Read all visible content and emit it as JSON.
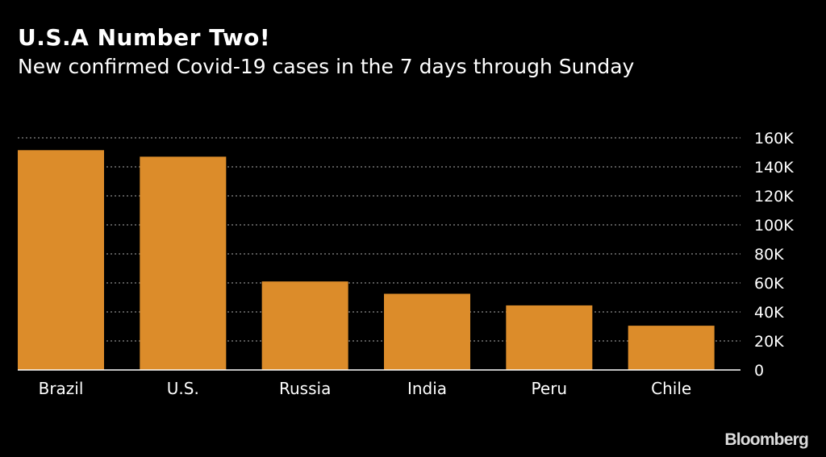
{
  "header": {
    "title": "U.S.A Number Two!",
    "subtitle": "New confirmed Covid-19 cases in the 7 days through Sunday"
  },
  "footer": {
    "brand": "Bloomberg"
  },
  "colors": {
    "background": "#000000",
    "bar": "#dc8c2a",
    "grid": "#8a8a8a",
    "text": "#ffffff",
    "axis": "#ffffff"
  },
  "chart_data": {
    "type": "bar",
    "title": "U.S.A Number Two!",
    "subtitle": "New confirmed Covid-19 cases in the 7 days through Sunday",
    "categories": [
      "Brazil",
      "U.S.",
      "Russia",
      "India",
      "Peru",
      "Chile"
    ],
    "values": [
      151500,
      147000,
      61000,
      52500,
      44500,
      30500
    ],
    "xlabel": "",
    "ylabel": "",
    "ylim": [
      0,
      160000
    ],
    "yticks": [
      0,
      20000,
      40000,
      60000,
      80000,
      100000,
      120000,
      140000,
      160000
    ],
    "ytick_labels": [
      "0",
      "20K",
      "40K",
      "60K",
      "80K",
      "100K",
      "120K",
      "140K",
      "160K"
    ],
    "y_axis_position": "right",
    "grid": true,
    "legend": "none"
  }
}
